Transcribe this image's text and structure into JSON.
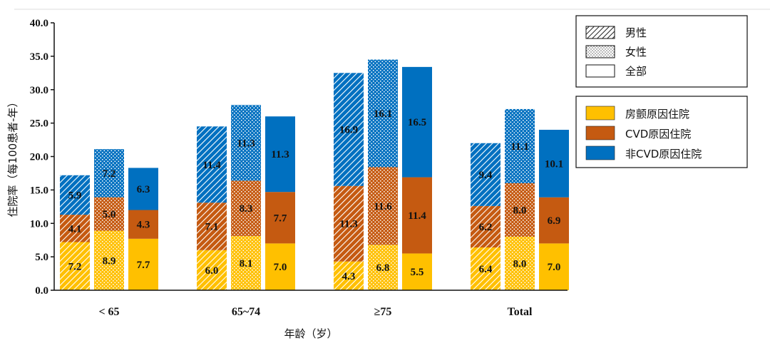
{
  "chart_data": {
    "type": "bar",
    "stacked": true,
    "categories": [
      "< 65",
      "65~74",
      "≥75",
      "Total"
    ],
    "groups": [
      "男性",
      "女性",
      "全部"
    ],
    "components": [
      "房颤原因住院",
      "CVD原因住院",
      "非CVD原因住院"
    ],
    "data": [
      {
        "category": "< 65",
        "bars": [
          [
            7.2,
            4.1,
            5.9
          ],
          [
            8.9,
            5.0,
            7.2
          ],
          [
            7.7,
            4.3,
            6.3
          ]
        ]
      },
      {
        "category": "65~74",
        "bars": [
          [
            6.0,
            7.1,
            11.4
          ],
          [
            8.1,
            8.3,
            11.3
          ],
          [
            7.0,
            7.7,
            11.3
          ]
        ]
      },
      {
        "category": "≥75",
        "bars": [
          [
            4.3,
            11.3,
            16.9
          ],
          [
            6.8,
            11.6,
            16.1
          ],
          [
            5.5,
            11.4,
            16.5
          ]
        ]
      },
      {
        "category": "Total",
        "bars": [
          [
            6.4,
            6.2,
            9.4
          ],
          [
            8.0,
            8.0,
            11.1
          ],
          [
            7.0,
            6.9,
            10.1
          ]
        ]
      }
    ],
    "xlabel": "年龄（岁）",
    "ylabel": "住院率（每100患者-年）",
    "ylim": [
      0,
      40
    ],
    "yticks": [
      "0.0",
      "5.0",
      "10.0",
      "15.0",
      "20.0",
      "25.0",
      "30.0",
      "35.0",
      "40.0"
    ],
    "legend_groups": [
      {
        "label": "男性",
        "pattern": "hatch"
      },
      {
        "label": "女性",
        "pattern": "dots"
      },
      {
        "label": "全部",
        "pattern": "solid"
      }
    ],
    "legend_components": [
      {
        "label": "房颤原因住院",
        "color": "#FFC000"
      },
      {
        "label": "CVD原因住院",
        "color": "#C55A11"
      },
      {
        "label": "非CVD原因住院",
        "color": "#0070C0"
      }
    ]
  }
}
